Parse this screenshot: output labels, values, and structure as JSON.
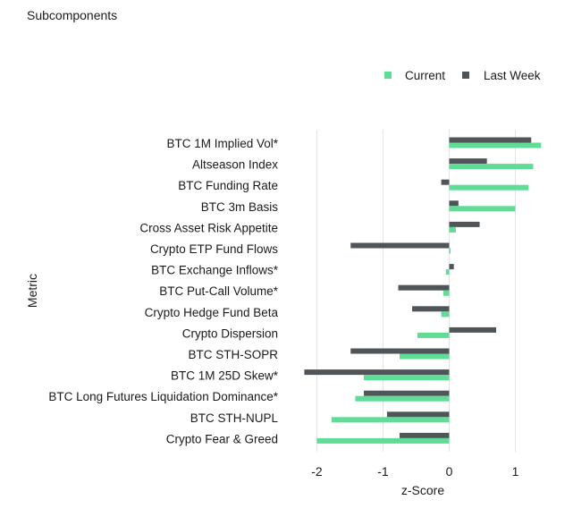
{
  "chart_data": {
    "type": "bar",
    "orientation": "horizontal",
    "title": "Subcomponents",
    "xlabel": "z-Score",
    "ylabel": "Metric",
    "xlim": [
      -2.3,
      1.45
    ],
    "xticks": [
      -2,
      -1,
      0,
      1
    ],
    "grid": true,
    "legend_position": "top-right",
    "categories": [
      "BTC 1M Implied Vol*",
      "Altseason Index",
      "BTC Funding Rate",
      "BTC 3m Basis",
      "Cross Asset Risk Appetite",
      "Crypto ETP Fund Flows",
      "BTC Exchange Inflows*",
      "BTC Put-Call Volume*",
      "Crypto Hedge Fund Beta",
      "Crypto Dispersion",
      "BTC STH-SOPR",
      "BTC 1M 25D Skew*",
      "BTC Long Futures Liquidation Dominance*",
      "BTC STH-NUPL",
      "Crypto Fear & Greed"
    ],
    "series": [
      {
        "name": "Current",
        "color": "#5fdc96",
        "values": [
          1.39,
          1.27,
          1.2,
          1.0,
          0.1,
          0.02,
          -0.05,
          -0.09,
          -0.12,
          -0.48,
          -0.75,
          -1.29,
          -1.42,
          -1.78,
          -2.0
        ]
      },
      {
        "name": "Last Week",
        "color": "#50555a",
        "values": [
          1.24,
          0.57,
          -0.12,
          0.14,
          0.46,
          -1.49,
          0.07,
          -0.77,
          -0.56,
          0.71,
          -1.49,
          -2.19,
          -1.29,
          -0.94,
          -0.75
        ]
      }
    ]
  }
}
